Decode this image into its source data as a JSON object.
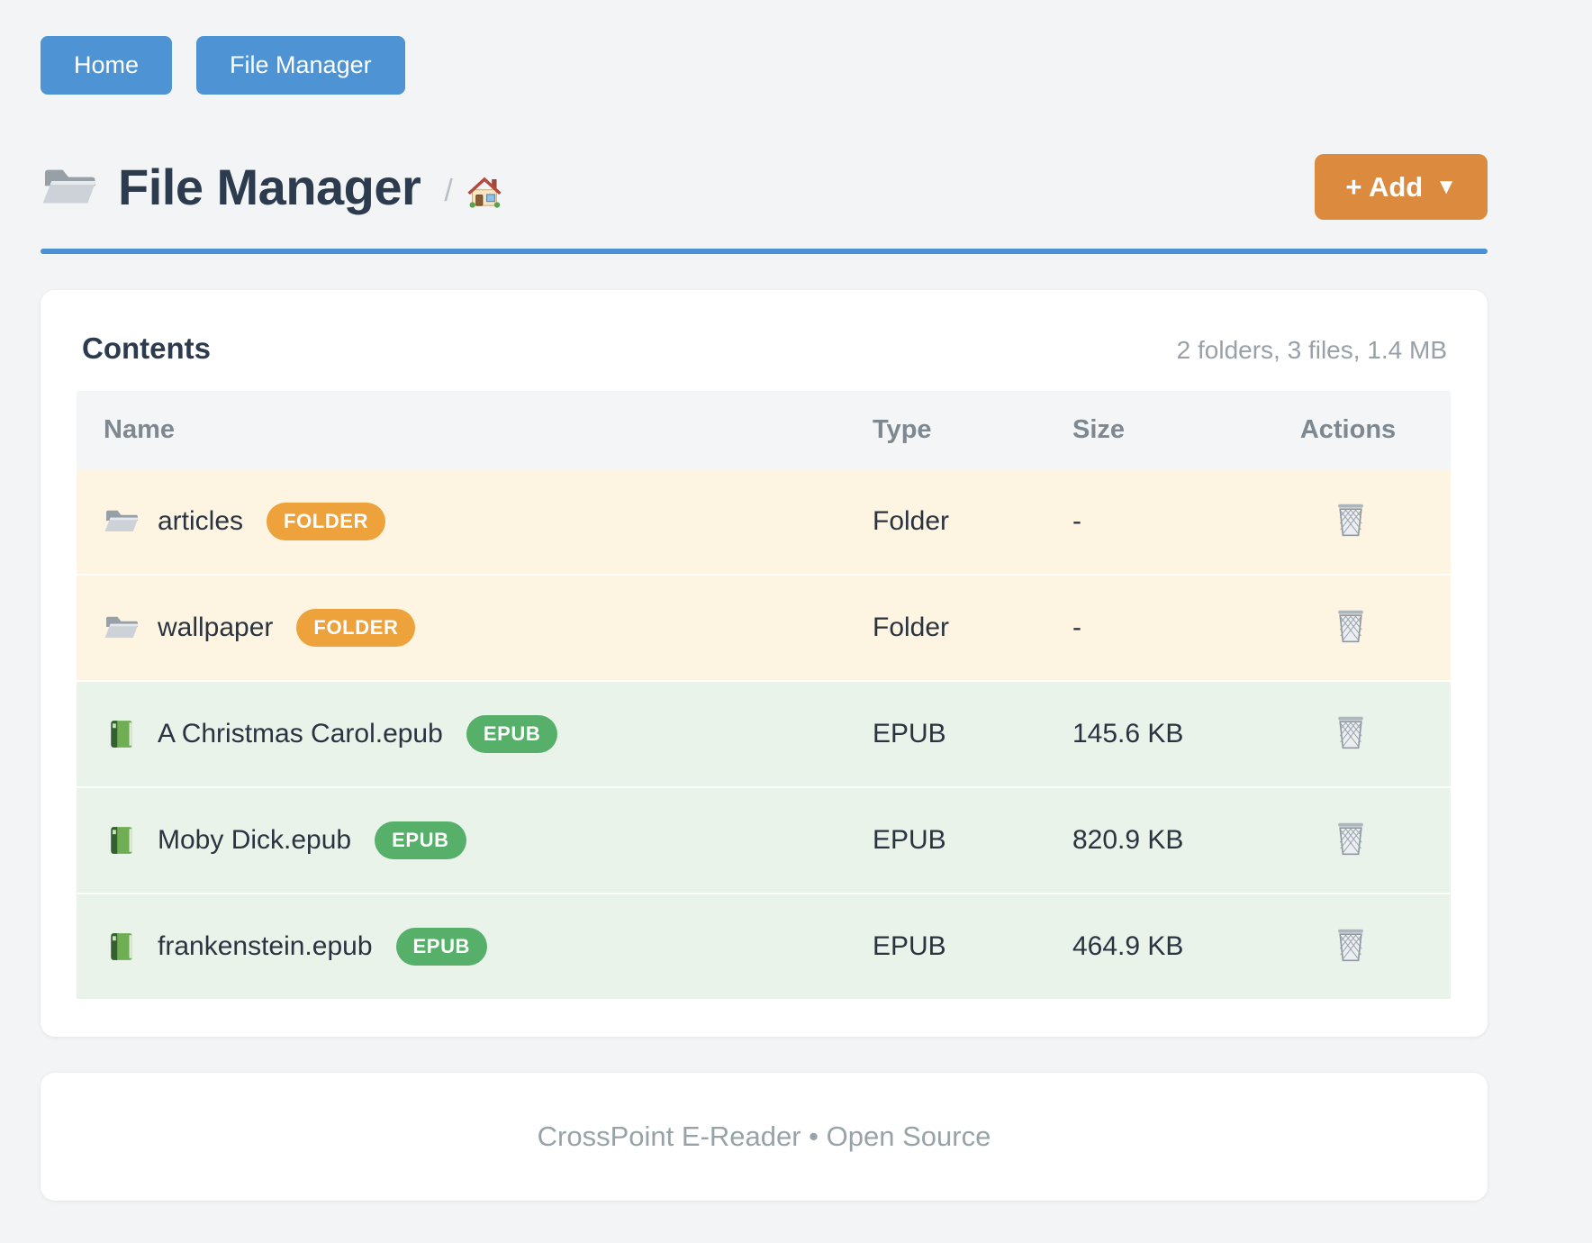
{
  "nav": {
    "buttons": [
      {
        "label": "Home"
      },
      {
        "label": "File Manager"
      }
    ]
  },
  "header": {
    "title": "File Manager",
    "breadcrumb_separator": "/",
    "add_button": {
      "label": "+ Add",
      "caret": "▼"
    }
  },
  "panel": {
    "title": "Contents",
    "summary": "2 folders, 3 files, 1.4 MB",
    "table": {
      "columns": [
        "Name",
        "Type",
        "Size",
        "Actions"
      ],
      "rows": [
        {
          "name": "articles",
          "kind": "folder",
          "badge": "FOLDER",
          "type": "Folder",
          "size": "-"
        },
        {
          "name": "wallpaper",
          "kind": "folder",
          "badge": "FOLDER",
          "type": "Folder",
          "size": "-"
        },
        {
          "name": "A Christmas Carol.epub",
          "kind": "epub",
          "badge": "EPUB",
          "type": "EPUB",
          "size": "145.6 KB"
        },
        {
          "name": "Moby Dick.epub",
          "kind": "epub",
          "badge": "EPUB",
          "type": "EPUB",
          "size": "820.9 KB"
        },
        {
          "name": "frankenstein.epub",
          "kind": "epub",
          "badge": "EPUB",
          "type": "EPUB",
          "size": "464.9 KB"
        }
      ]
    }
  },
  "footer": {
    "text": "CrossPoint E-Reader • Open Source"
  },
  "colors": {
    "nav_button": "#4e93d3",
    "divider": "#4a90d5",
    "add_button": "#dc8b3e",
    "folder_badge": "#eda23c",
    "epub_badge": "#57b06a",
    "folder_row_bg": "#fdf5e2",
    "epub_row_bg": "#e9f3ea"
  }
}
